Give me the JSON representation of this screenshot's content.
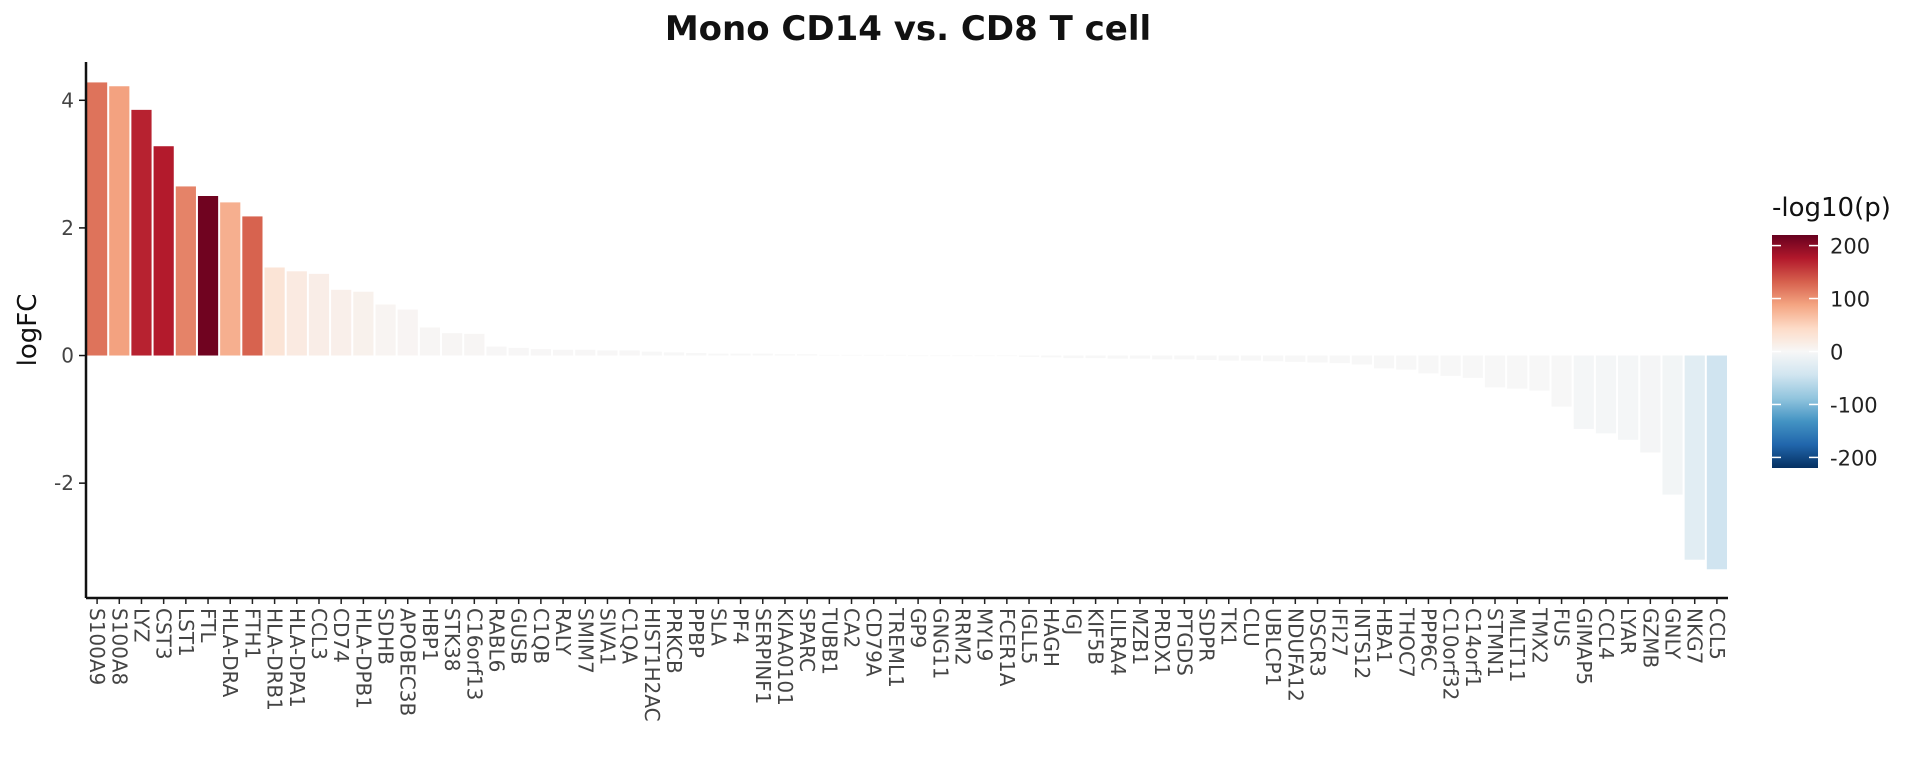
{
  "chart_data": {
    "type": "bar",
    "title": "Mono CD14 vs. CD8 T cell",
    "xlabel": "",
    "ylabel": "logFC",
    "ylim": [
      -3.8,
      4.6
    ],
    "yticks": [
      -2,
      0,
      2,
      4
    ],
    "grid": false,
    "legend": {
      "title": "-log10(p)",
      "position": "right",
      "type": "colorbar",
      "range": [
        -220,
        220
      ],
      "ticks": [
        200,
        100,
        0,
        -100,
        -200
      ],
      "colors": [
        "#053061",
        "#2166ac",
        "#4393c3",
        "#92c5de",
        "#d1e5f0",
        "#f7f7f7",
        "#fddbc7",
        "#f4a582",
        "#d6604d",
        "#b2182b",
        "#67001f"
      ]
    },
    "categories": [
      "S100A9",
      "S100A8",
      "LYZ",
      "CST3",
      "LST1",
      "FTL",
      "HLA-DRA",
      "FTH1",
      "HLA-DRB1",
      "HLA-DPA1",
      "CCL3",
      "CD74",
      "HLA-DPB1",
      "SDHB",
      "APOBEC3B",
      "HBP1",
      "STK38",
      "C16orf13",
      "RABL6",
      "GUSB",
      "C1QB",
      "RALY",
      "SMIM7",
      "SIVA1",
      "C1QA",
      "HIST1H2AC",
      "PRKCB",
      "PPBP",
      "SLA",
      "PF4",
      "SERPINF1",
      "KIAA0101",
      "SPARC",
      "TUBB1",
      "CA2",
      "CD79A",
      "TREML1",
      "GP9",
      "GNG11",
      "RRM2",
      "MYL9",
      "FCER1A",
      "IGLL5",
      "HAGH",
      "IGJ",
      "KIF5B",
      "LILRA4",
      "MZB1",
      "PRDX1",
      "PTGDS",
      "SDPR",
      "TK1",
      "CLU",
      "UBLCP1",
      "NDUFA12",
      "DSCR3",
      "IFI27",
      "INTS12",
      "HBA1",
      "THOC7",
      "PPP6C",
      "C10orf32",
      "C14orf1",
      "STMN1",
      "MLLT11",
      "TMX2",
      "FUS",
      "GIMAP5",
      "CCL4",
      "LYAR",
      "GZMB",
      "GNLY",
      "NKG7",
      "CCL5"
    ],
    "values": [
      4.28,
      4.22,
      3.85,
      3.28,
      2.65,
      2.5,
      2.4,
      2.18,
      1.38,
      1.32,
      1.28,
      1.03,
      1.0,
      0.8,
      0.72,
      0.44,
      0.35,
      0.34,
      0.14,
      0.12,
      0.1,
      0.09,
      0.09,
      0.08,
      0.08,
      0.06,
      0.05,
      0.04,
      0.03,
      0.03,
      0.03,
      0.02,
      0.02,
      0.01,
      0.01,
      0.01,
      0.01,
      0.0,
      0.0,
      0.0,
      0.0,
      -0.01,
      -0.02,
      -0.03,
      -0.04,
      -0.04,
      -0.05,
      -0.05,
      -0.06,
      -0.06,
      -0.07,
      -0.08,
      -0.08,
      -0.09,
      -0.1,
      -0.11,
      -0.12,
      -0.14,
      -0.2,
      -0.22,
      -0.28,
      -0.32,
      -0.35,
      -0.5,
      -0.52,
      -0.55,
      -0.8,
      -1.15,
      -1.22,
      -1.32,
      -1.52,
      -2.18,
      -3.2,
      -3.35
    ],
    "neglog10p": [
      120,
      90,
      170,
      175,
      110,
      215,
      80,
      130,
      30,
      20,
      15,
      12,
      10,
      5,
      4,
      3,
      3,
      3,
      1,
      1,
      1,
      1,
      1,
      1,
      1,
      0,
      0,
      0,
      0,
      0,
      0,
      0,
      0,
      0,
      0,
      0,
      0,
      0,
      0,
      0,
      0,
      0,
      0,
      0,
      0,
      0,
      0,
      0,
      0,
      0,
      0,
      0,
      0,
      0,
      0,
      0,
      0,
      0,
      0,
      0,
      0,
      0,
      0,
      0,
      0,
      0,
      0,
      -3,
      -3,
      -3,
      -4,
      -6,
      -25,
      -45
    ]
  }
}
